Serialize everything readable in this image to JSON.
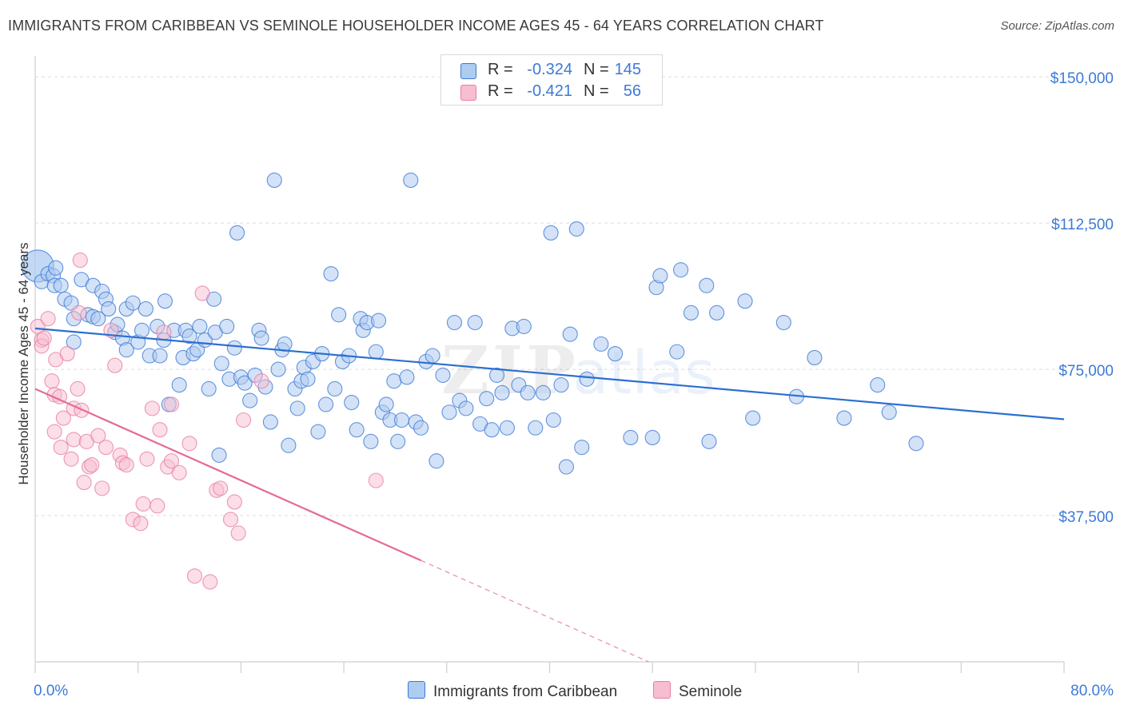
{
  "header": {
    "title": "IMMIGRANTS FROM CARIBBEAN VS SEMINOLE HOUSEHOLDER INCOME AGES 45 - 64 YEARS CORRELATION CHART",
    "source": "Source: ZipAtlas.com"
  },
  "watermark": {
    "zip": "ZIP",
    "atlas": "atlas"
  },
  "colors": {
    "blue": "#3d7ad6",
    "blue_fill": "#aecbf0",
    "blue_line": "#2b6fd0",
    "pink": "#e77fa3",
    "pink_fill": "#f7bdd0",
    "pink_line": "#e56b97",
    "grid": "#dcdcdc"
  },
  "legend": {
    "rows": [
      {
        "r_label": "R =",
        "r_value": "-0.324",
        "n_label": "N =",
        "n_value": "145"
      },
      {
        "r_label": "R =",
        "r_value": "-0.421",
        "n_label": "N =",
        "n_value": "56"
      }
    ]
  },
  "bottom_legend": {
    "series1": "Immigrants from Caribbean",
    "series2": "Seminole"
  },
  "chart_data": {
    "type": "scatter",
    "title": "IMMIGRANTS FROM CARIBBEAN VS SEMINOLE HOUSEHOLDER INCOME AGES 45 - 64 YEARS CORRELATION CHART",
    "xlabel": "",
    "ylabel": "Householder Income Ages 45 - 64 years",
    "xlim": [
      0,
      80
    ],
    "ylim": [
      0,
      157000
    ],
    "x_tick_labels": [
      "0.0%",
      "80.0%"
    ],
    "y_ticks": [
      37500,
      75000,
      112500,
      150000
    ],
    "y_tick_labels": [
      "$37,500",
      "$75,000",
      "$112,500",
      "$150,000"
    ],
    "grid": true,
    "legend_position": "top-center",
    "series": [
      {
        "name": "Immigrants from Caribbean",
        "color": "#3d7ad6",
        "r": -0.324,
        "n": 145,
        "trend": {
          "x": [
            0,
            80
          ],
          "y": [
            85500,
            62200
          ]
        },
        "points": [
          [
            0.2,
            101500
          ],
          [
            0.5,
            97500
          ],
          [
            1.0,
            99500
          ],
          [
            1.4,
            99000
          ],
          [
            1.6,
            101000
          ],
          [
            1.5,
            96500
          ],
          [
            2.0,
            96500
          ],
          [
            2.3,
            93000
          ],
          [
            2.8,
            92000
          ],
          [
            3.0,
            88000
          ],
          [
            3.0,
            82000
          ],
          [
            3.6,
            98000
          ],
          [
            4.1,
            89000
          ],
          [
            4.5,
            88500
          ],
          [
            4.5,
            96500
          ],
          [
            4.9,
            88000
          ],
          [
            5.2,
            95000
          ],
          [
            5.5,
            93000
          ],
          [
            5.7,
            90500
          ],
          [
            6.2,
            84500
          ],
          [
            6.4,
            86500
          ],
          [
            6.8,
            83000
          ],
          [
            7.1,
            90500
          ],
          [
            7.1,
            80000
          ],
          [
            7.6,
            92000
          ],
          [
            8.0,
            82000
          ],
          [
            8.3,
            85000
          ],
          [
            8.6,
            90500
          ],
          [
            8.9,
            78500
          ],
          [
            9.5,
            86000
          ],
          [
            9.7,
            78500
          ],
          [
            10.0,
            82500
          ],
          [
            10.1,
            92500
          ],
          [
            10.4,
            66000
          ],
          [
            10.8,
            85000
          ],
          [
            11.2,
            71000
          ],
          [
            11.5,
            78000
          ],
          [
            11.7,
            85000
          ],
          [
            12.0,
            83500
          ],
          [
            12.3,
            79000
          ],
          [
            12.6,
            80000
          ],
          [
            12.8,
            86000
          ],
          [
            13.2,
            82500
          ],
          [
            13.5,
            70000
          ],
          [
            13.9,
            93000
          ],
          [
            14.0,
            84500
          ],
          [
            14.3,
            53000
          ],
          [
            14.5,
            76500
          ],
          [
            14.9,
            86000
          ],
          [
            15.1,
            72500
          ],
          [
            15.5,
            80500
          ],
          [
            15.7,
            110000
          ],
          [
            16.0,
            73000
          ],
          [
            16.3,
            71500
          ],
          [
            16.7,
            67000
          ],
          [
            17.1,
            73500
          ],
          [
            17.4,
            85000
          ],
          [
            17.6,
            83000
          ],
          [
            17.9,
            70500
          ],
          [
            18.3,
            61500
          ],
          [
            18.6,
            123500
          ],
          [
            18.9,
            75000
          ],
          [
            19.2,
            80000
          ],
          [
            19.4,
            81500
          ],
          [
            19.7,
            55500
          ],
          [
            20.2,
            70000
          ],
          [
            20.4,
            65000
          ],
          [
            20.7,
            72000
          ],
          [
            20.9,
            75500
          ],
          [
            21.2,
            72500
          ],
          [
            21.6,
            77000
          ],
          [
            22.0,
            59000
          ],
          [
            22.3,
            79000
          ],
          [
            22.6,
            66000
          ],
          [
            23.0,
            99500
          ],
          [
            23.3,
            70000
          ],
          [
            23.6,
            89000
          ],
          [
            23.9,
            77000
          ],
          [
            24.4,
            78500
          ],
          [
            24.6,
            66500
          ],
          [
            25.0,
            59500
          ],
          [
            25.3,
            88000
          ],
          [
            25.5,
            85000
          ],
          [
            25.8,
            87000
          ],
          [
            26.1,
            56500
          ],
          [
            26.5,
            79500
          ],
          [
            26.7,
            87500
          ],
          [
            27.0,
            64000
          ],
          [
            27.3,
            66000
          ],
          [
            27.6,
            62000
          ],
          [
            27.9,
            72000
          ],
          [
            28.2,
            56500
          ],
          [
            28.5,
            62000
          ],
          [
            28.9,
            73000
          ],
          [
            29.2,
            123500
          ],
          [
            29.6,
            61500
          ],
          [
            30.0,
            60000
          ],
          [
            30.4,
            77000
          ],
          [
            30.9,
            78500
          ],
          [
            31.2,
            51500
          ],
          [
            31.7,
            73500
          ],
          [
            32.2,
            64000
          ],
          [
            32.6,
            87000
          ],
          [
            33.0,
            67000
          ],
          [
            33.5,
            65000
          ],
          [
            34.2,
            87000
          ],
          [
            34.6,
            61000
          ],
          [
            35.1,
            67500
          ],
          [
            35.5,
            59500
          ],
          [
            35.9,
            73500
          ],
          [
            36.3,
            69000
          ],
          [
            36.7,
            60000
          ],
          [
            37.1,
            85500
          ],
          [
            37.6,
            71000
          ],
          [
            38.0,
            86000
          ],
          [
            38.3,
            69000
          ],
          [
            38.9,
            60000
          ],
          [
            39.5,
            69000
          ],
          [
            40.1,
            110000
          ],
          [
            40.3,
            62000
          ],
          [
            40.9,
            71000
          ],
          [
            41.3,
            50000
          ],
          [
            41.6,
            84000
          ],
          [
            42.1,
            111000
          ],
          [
            42.5,
            55000
          ],
          [
            42.9,
            72500
          ],
          [
            44.0,
            81500
          ],
          [
            45.1,
            79000
          ],
          [
            46.3,
            57500
          ],
          [
            48.0,
            57500
          ],
          [
            48.3,
            96000
          ],
          [
            48.6,
            99000
          ],
          [
            49.9,
            79500
          ],
          [
            50.2,
            100500
          ],
          [
            51.0,
            89500
          ],
          [
            52.2,
            96500
          ],
          [
            52.4,
            56500
          ],
          [
            53.0,
            89500
          ],
          [
            55.2,
            92500
          ],
          [
            55.8,
            62500
          ],
          [
            58.2,
            87000
          ],
          [
            59.2,
            68000
          ],
          [
            60.6,
            78000
          ],
          [
            62.9,
            62500
          ],
          [
            65.5,
            71000
          ],
          [
            66.4,
            64000
          ],
          [
            68.5,
            56000
          ]
        ]
      },
      {
        "name": "Seminole",
        "color": "#e77fa3",
        "r": -0.421,
        "n": 56,
        "trend": {
          "x": [
            0,
            30
          ],
          "y": [
            70000,
            26000
          ]
        },
        "trend_dashed": {
          "x": [
            30,
            47.7
          ],
          "y": [
            26000,
            0
          ]
        },
        "points": [
          [
            0.2,
            86000
          ],
          [
            0.5,
            82500
          ],
          [
            0.5,
            81000
          ],
          [
            0.7,
            83000
          ],
          [
            1.0,
            88000
          ],
          [
            1.3,
            72000
          ],
          [
            1.5,
            59000
          ],
          [
            1.5,
            68500
          ],
          [
            1.6,
            77500
          ],
          [
            1.9,
            68000
          ],
          [
            2.0,
            55000
          ],
          [
            2.2,
            62500
          ],
          [
            2.5,
            79000
          ],
          [
            2.8,
            52000
          ],
          [
            3.0,
            57000
          ],
          [
            3.0,
            65000
          ],
          [
            3.3,
            70000
          ],
          [
            3.4,
            89500
          ],
          [
            3.6,
            64500
          ],
          [
            3.8,
            46000
          ],
          [
            4.0,
            56500
          ],
          [
            4.2,
            50000
          ],
          [
            4.4,
            50500
          ],
          [
            4.9,
            58000
          ],
          [
            5.2,
            44500
          ],
          [
            5.5,
            55000
          ],
          [
            5.9,
            85000
          ],
          [
            6.2,
            76000
          ],
          [
            6.6,
            53000
          ],
          [
            6.8,
            51000
          ],
          [
            7.1,
            50500
          ],
          [
            7.6,
            36500
          ],
          [
            8.2,
            35500
          ],
          [
            8.4,
            40500
          ],
          [
            8.7,
            52000
          ],
          [
            9.1,
            65000
          ],
          [
            9.5,
            40000
          ],
          [
            9.7,
            59500
          ],
          [
            10.0,
            84500
          ],
          [
            10.3,
            50000
          ],
          [
            10.6,
            51500
          ],
          [
            10.6,
            66000
          ],
          [
            11.2,
            48500
          ],
          [
            12.0,
            56000
          ],
          [
            12.4,
            22000
          ],
          [
            13.6,
            20500
          ],
          [
            14.1,
            44000
          ],
          [
            14.4,
            44500
          ],
          [
            15.2,
            36500
          ],
          [
            15.5,
            41000
          ],
          [
            15.8,
            33000
          ],
          [
            16.2,
            62000
          ],
          [
            17.6,
            72000
          ],
          [
            26.5,
            46500
          ],
          [
            13.0,
            94500
          ],
          [
            3.5,
            103000
          ]
        ]
      }
    ]
  }
}
